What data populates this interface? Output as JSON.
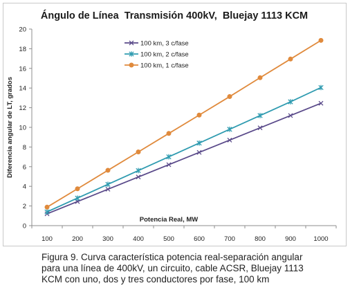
{
  "chart_data": {
    "type": "line",
    "title": "Ángulo de Línea  Transmisión 400kV,  Bluejay 1113 KCM",
    "xlabel": "Potencia Real, MW",
    "ylabel": "Diferencia angular de LT, grados",
    "x": [
      100,
      200,
      300,
      400,
      500,
      600,
      700,
      800,
      900,
      1000
    ],
    "xticks": [
      "100",
      "200",
      "300",
      "400",
      "500",
      "600",
      "700",
      "800",
      "900",
      "1000"
    ],
    "yticks": [
      "0",
      "2",
      "4",
      "6",
      "8",
      "10",
      "12",
      "14",
      "16",
      "18",
      "20"
    ],
    "ylim": [
      0,
      20
    ],
    "grid": false,
    "legend_position": "top-left",
    "series": [
      {
        "name": "100 km, 3 c/fase",
        "color": "#5a4a8a",
        "marker": "x",
        "values": [
          1.2,
          2.45,
          3.7,
          4.95,
          6.2,
          7.45,
          8.7,
          9.95,
          11.2,
          12.45
        ]
      },
      {
        "name": "100 km, 2 c/fase",
        "color": "#2f9bb0",
        "marker": "star",
        "values": [
          1.4,
          2.8,
          4.2,
          5.6,
          7.0,
          8.4,
          9.8,
          11.2,
          12.6,
          14.05
        ]
      },
      {
        "name": "100 km, 1 c/fase",
        "color": "#e08a3c",
        "marker": "circle",
        "values": [
          1.88,
          3.75,
          5.63,
          7.5,
          9.38,
          11.25,
          13.13,
          15.05,
          16.95,
          18.85
        ]
      }
    ]
  },
  "caption": {
    "line1": "Figura 9. Curva característica potencia real-separación angular",
    "line2": "para una línea de 400kV, un circuito, cable ACSR, Bluejay 1113",
    "line3": "KCM con uno, dos y tres conductores por fase, 100 km"
  }
}
